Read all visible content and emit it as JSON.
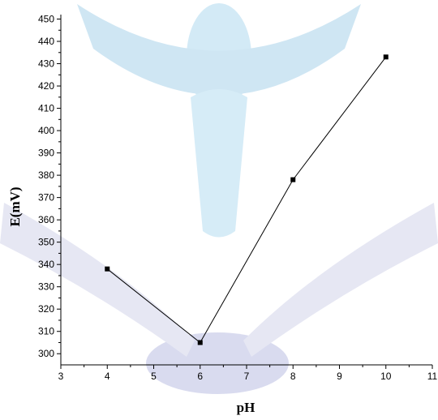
{
  "chart_data": {
    "type": "line",
    "title": "",
    "xlabel": "pH",
    "ylabel": "E(mV)",
    "xlim": [
      3,
      11
    ],
    "ylim": [
      295,
      452
    ],
    "x_ticks": [
      "3",
      "4",
      "5",
      "6",
      "7",
      "8",
      "9",
      "10",
      "11"
    ],
    "y_ticks": [
      "300",
      "310",
      "320",
      "330",
      "340",
      "350",
      "360",
      "370",
      "380",
      "390",
      "400",
      "410",
      "420",
      "430",
      "440",
      "450"
    ],
    "series": [
      {
        "x": [
          4,
          6,
          8,
          10
        ],
        "y": [
          338,
          305,
          378,
          433
        ]
      }
    ],
    "markers": "square",
    "grid": false,
    "colors": {
      "line": "#000000",
      "marker": "#000000"
    }
  }
}
